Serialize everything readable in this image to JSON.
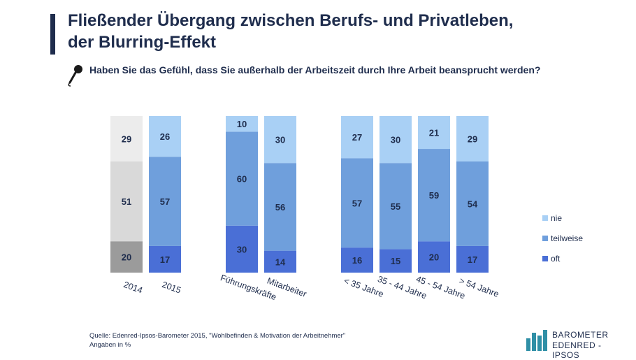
{
  "title": {
    "line1": "Fließender Übergang zwischen Berufs- und Privatleben,",
    "line2": "der Blurring-Effekt"
  },
  "question": "Haben Sie das Gefühl, dass Sie außerhalb der Arbeitszeit durch Ihre Arbeit beansprucht werden?",
  "chart_data": {
    "type": "bar",
    "stacked": true,
    "unit": "%",
    "categories": [
      "2014",
      "2015",
      "Führungskräfte",
      "Mitarbeiter",
      "< 35 Jahre",
      "35 - 44 Jahre",
      "45 - 54 Jahre",
      "> 54 Jahre"
    ],
    "groups": [
      [
        0,
        1
      ],
      [
        2,
        3
      ],
      [
        4,
        5,
        6,
        7
      ]
    ],
    "series": [
      {
        "name": "oft",
        "values": [
          20,
          17,
          30,
          14,
          16,
          15,
          20,
          17
        ]
      },
      {
        "name": "teilweise",
        "values": [
          51,
          57,
          60,
          56,
          57,
          55,
          59,
          54
        ]
      },
      {
        "name": "nie",
        "values": [
          29,
          26,
          10,
          30,
          27,
          30,
          21,
          29
        ]
      }
    ],
    "legend_order": [
      "nie",
      "teilweise",
      "oft"
    ],
    "legend_position": "right",
    "colors": {
      "oft": "#4a6fd6",
      "teilweise": "#6f9fdc",
      "nie": "#a9d0f5",
      "text_dark": "#1f2d4d"
    },
    "highlight_first_category_colors": {
      "oft": "#9b9b9b",
      "teilweise": "#d9d9d9",
      "nie": "#ececec"
    },
    "ylim": [
      0,
      100
    ]
  },
  "source": {
    "line1": "Quelle: Edenred-Ipsos-Barometer 2015, \"Wohlbefinden & Motivation der Arbeitnehmer\"",
    "line2": "Angaben in %"
  },
  "logo": {
    "line1": "BAROMETER",
    "line2": "EDENRED - IPSOS"
  }
}
